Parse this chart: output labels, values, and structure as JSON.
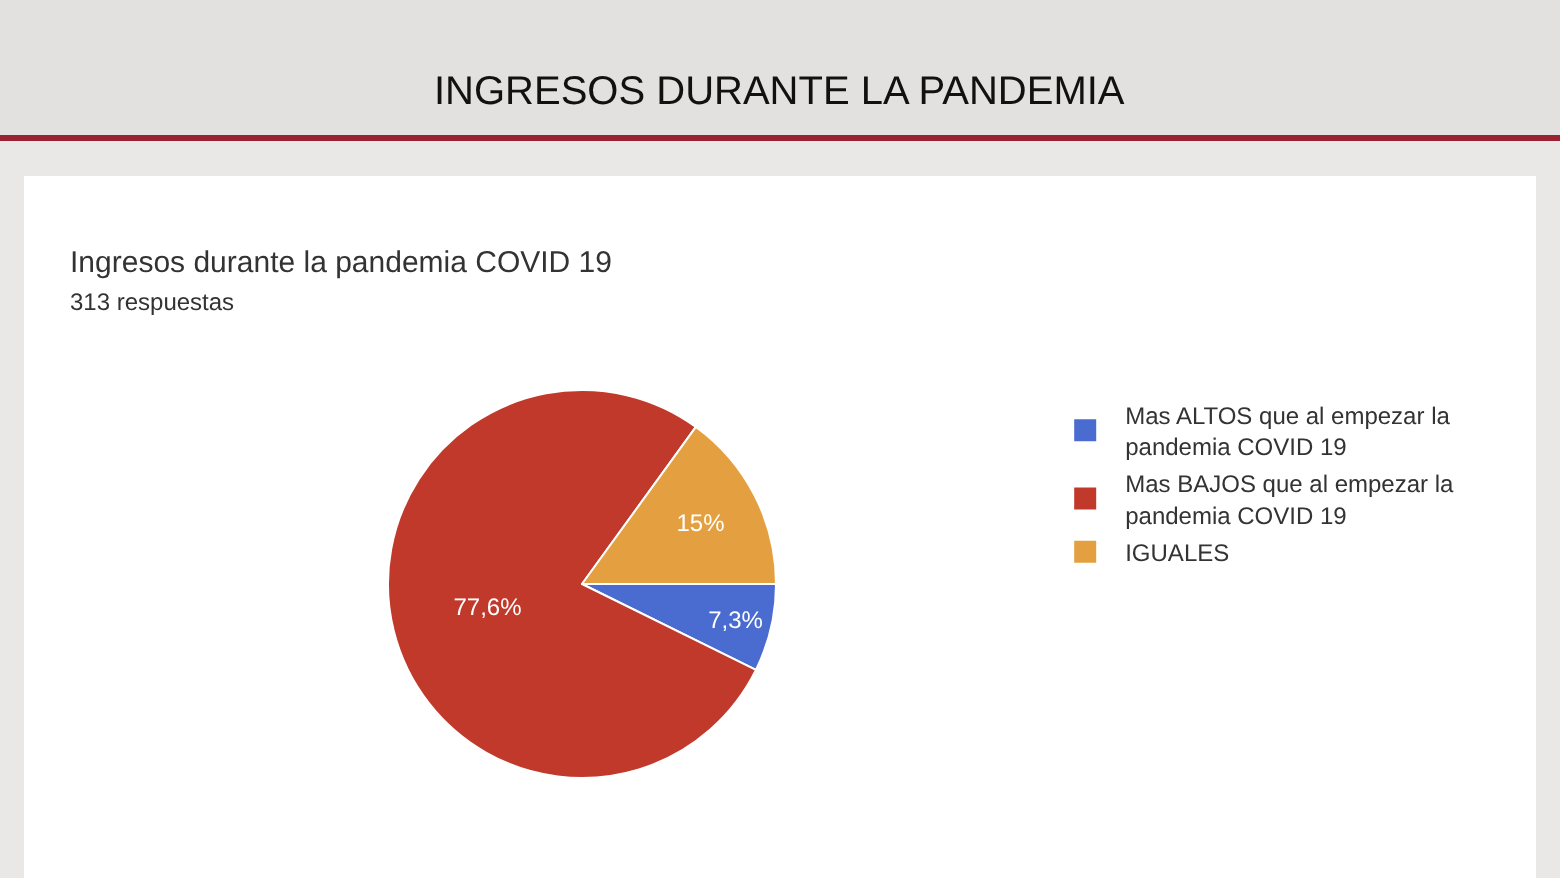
{
  "chart_data": {
    "type": "pie",
    "title": "INGRESOS DURANTE LA PANDEMIA",
    "subtitle": "Ingresos durante la pandemia COVID 19",
    "annotations": [
      "313 respuestas"
    ],
    "categories": [
      "Mas ALTOS que al empezar la pandemia COVID 19",
      "Mas BAJOS que al empezar la pandemia COVID 19",
      "IGUALES"
    ],
    "values": [
      7.3,
      77.6,
      15
    ],
    "value_labels": [
      "7,3%",
      "77,6%",
      "15%"
    ],
    "colors": [
      "#4a6bd0",
      "#c0392b",
      "#e4a040"
    ],
    "legend": "right"
  }
}
